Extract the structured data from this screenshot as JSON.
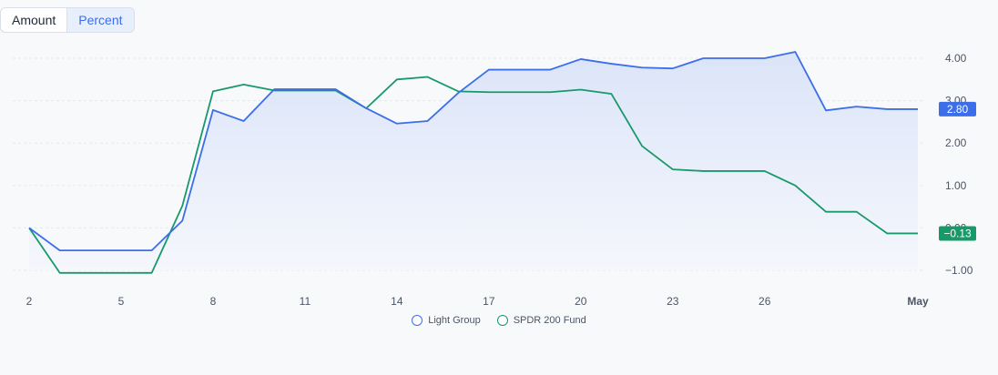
{
  "toggle": {
    "amount_label": "Amount",
    "percent_label": "Percent",
    "selected": "Percent"
  },
  "colors": {
    "series_a": "#3b6ee8",
    "series_b": "#18996a",
    "fill_top": "#dbe4f8",
    "fill_bottom": "#f5f7fc",
    "grid": "#e4e7ec"
  },
  "chart_data": {
    "type": "line",
    "x": [
      2,
      3,
      4,
      5,
      6,
      7,
      8,
      9,
      10,
      11,
      12,
      13,
      14,
      15,
      16,
      17,
      18,
      19,
      20,
      21,
      22,
      23,
      24,
      25,
      26,
      27,
      28,
      29,
      30,
      31
    ],
    "x_tick_positions": [
      2,
      5,
      8,
      11,
      14,
      17,
      20,
      23,
      26,
      31
    ],
    "x_tick_labels": [
      "2",
      "5",
      "8",
      "11",
      "14",
      "17",
      "20",
      "23",
      "26",
      "May"
    ],
    "y_ticks": [
      -1,
      0,
      1,
      2,
      3,
      4
    ],
    "y_tick_labels": [
      "−1.00",
      "0.00",
      "1.00",
      "2.00",
      "3.00",
      "4.00"
    ],
    "ylim": [
      -1.05,
      4.15
    ],
    "series": [
      {
        "name": "Light Group",
        "values": [
          0.0,
          -0.53,
          -0.53,
          -0.53,
          -0.53,
          0.17,
          2.78,
          2.52,
          3.27,
          3.27,
          3.27,
          2.82,
          2.46,
          2.52,
          3.18,
          3.73,
          3.73,
          3.73,
          3.98,
          3.87,
          3.78,
          3.76,
          4.0,
          4.0,
          4.0,
          4.15,
          2.77,
          2.86,
          2.8,
          2.8
        ],
        "last_label": "2.80"
      },
      {
        "name": "SPDR 200 Fund",
        "values": [
          0.0,
          -1.06,
          -1.06,
          -1.06,
          -1.06,
          0.52,
          3.22,
          3.38,
          3.24,
          3.24,
          3.24,
          2.82,
          3.5,
          3.56,
          3.22,
          3.2,
          3.2,
          3.2,
          3.26,
          3.16,
          1.93,
          1.38,
          1.34,
          1.34,
          1.34,
          1.0,
          0.38,
          0.38,
          -0.13,
          -0.13
        ],
        "last_label": "−0.13"
      }
    ],
    "grid": true,
    "legend_position": "bottom"
  }
}
